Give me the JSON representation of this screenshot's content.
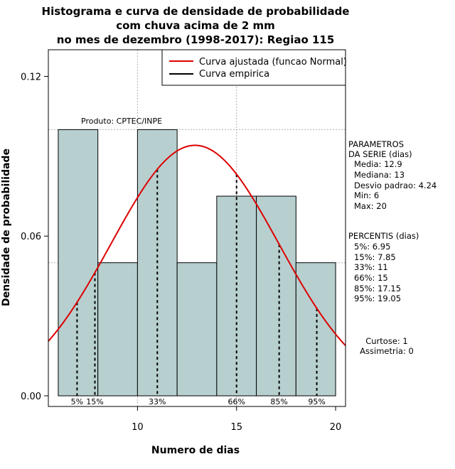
{
  "chart_data": {
    "type": "bar",
    "title_lines": [
      "Histograma e curva de densidade de probabilidade",
      "com chuva acima de 2 mm",
      "no mes de dezembro (1998-2017): Regiao 115"
    ],
    "xlabel": "Numero de dias",
    "ylabel": "Densidade de probabilidade",
    "xlim": [
      5.5,
      20.5
    ],
    "ylim": [
      -0.004,
      0.13
    ],
    "x_ticks": [
      10,
      15,
      20
    ],
    "y_ticks": [
      0.0,
      0.06,
      0.12
    ],
    "y_tick_labels": [
      "0.00",
      "0.06",
      "0.12"
    ],
    "bins": [
      {
        "start": 6,
        "end": 8,
        "density": 0.1
      },
      {
        "start": 8,
        "end": 10,
        "density": 0.05
      },
      {
        "start": 10,
        "end": 12,
        "density": 0.1
      },
      {
        "start": 12,
        "end": 14,
        "density": 0.05
      },
      {
        "start": 14,
        "end": 16,
        "density": 0.075
      },
      {
        "start": 16,
        "end": 18,
        "density": 0.075
      },
      {
        "start": 18,
        "end": 20,
        "density": 0.05
      }
    ],
    "bar_color": "#b7cfcf",
    "curve_color": "#dd0000",
    "normal_fit": {
      "mean": 12.9,
      "sd": 4.24
    },
    "grid_y": [
      0.05,
      0.1
    ],
    "grid_x": [
      10,
      15
    ],
    "percentile_lines": [
      {
        "label": "5%",
        "x": 6.95
      },
      {
        "label": "15%",
        "x": 7.85
      },
      {
        "label": "33%",
        "x": 11
      },
      {
        "label": "66%",
        "x": 15
      },
      {
        "label": "85%",
        "x": 17.15
      },
      {
        "label": "95%",
        "x": 19.05
      }
    ],
    "legend": {
      "position": "top-right",
      "entries": [
        {
          "label": "Curva ajustada (funcao Normal)",
          "color": "#dd0000"
        },
        {
          "label": "Curva empirica",
          "color": "#000000"
        }
      ]
    },
    "annotation": "Produto: CPTEC/INPE"
  },
  "side_panel": {
    "params_title_1": "PARAMETROS",
    "params_title_2": "DA SERIE (dias)",
    "params": [
      "Media: 12.9",
      "Mediana: 13",
      "Desvio padrao: 4.24",
      "Min: 6",
      "Max: 20"
    ],
    "percentis_title": "PERCENTIS (dias)",
    "percentis": [
      "5%: 6.95",
      "15%: 7.85",
      "33%: 11",
      "66%: 15",
      "85%: 17.15",
      "95%: 19.05"
    ],
    "curtose": "Curtose: 1",
    "assimetria": "Assimetria: 0"
  }
}
